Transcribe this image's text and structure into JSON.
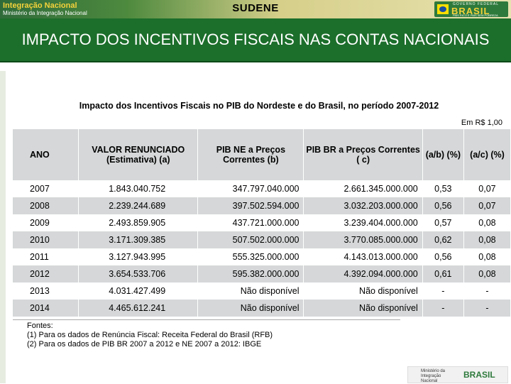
{
  "header": {
    "logo_left_line1": "Integração Nacional",
    "logo_left_line2": "Ministério da Integração Nacional",
    "org": "SUDENE",
    "logo_right_top": "GOVERNO FEDERAL",
    "logo_right_brand": "BRASIL",
    "logo_right_sub": "PAÍS RICO É PAÍS SEM POBREZA"
  },
  "slide_title": "IMPACTO DOS INCENTIVOS FISCAIS NAS CONTAS NACIONAIS",
  "table": {
    "caption": "Impacto dos Incentivos Fiscais no PIB do Nordeste e do Brasil, no período 2007-2012",
    "unit": "Em R$ 1,00",
    "headers": [
      "ANO",
      "VALOR RENUNCIADO (Estimativa) (a)",
      "PIB NE a Preços Correntes (b)",
      "PIB BR a Preços Correntes ( c)",
      "(a/b) (%)",
      "(a/c) (%)"
    ],
    "rows": [
      [
        "2007",
        "1.843.040.752",
        "347.797.040.000",
        "2.661.345.000.000",
        "0,53",
        "0,07"
      ],
      [
        "2008",
        "2.239.244.689",
        "397.502.594.000",
        "3.032.203.000.000",
        "0,56",
        "0,07"
      ],
      [
        "2009",
        "2.493.859.905",
        "437.721.000.000",
        "3.239.404.000.000",
        "0,57",
        "0,08"
      ],
      [
        "2010",
        "3.171.309.385",
        "507.502.000.000",
        "3.770.085.000.000",
        "0,62",
        "0,08"
      ],
      [
        "2011",
        "3.127.943.995",
        "555.325.000.000",
        "4.143.013.000.000",
        "0,56",
        "0,08"
      ],
      [
        "2012",
        "3.654.533.706",
        "595.382.000.000",
        "4.392.094.000.000",
        "0,61",
        "0,08"
      ],
      [
        "2013",
        "4.031.427.499",
        "Não disponível",
        "Não disponível",
        "-",
        "-"
      ],
      [
        "2014",
        "4.465.612.241",
        "Não disponível",
        "Não disponível",
        "-",
        "-"
      ]
    ]
  },
  "notes": {
    "title": "Fontes:",
    "line1": "(1) Para os dados de Renúncia Fiscal: Receita Federal do Brasil (RFB)",
    "line2": "(2) Para os dados de PIB BR 2007 a 2012 e NE 2007 a 2012: IBGE"
  },
  "footer": {
    "ministry": "Ministério da Integração Nacional",
    "brand": "BRASIL"
  }
}
